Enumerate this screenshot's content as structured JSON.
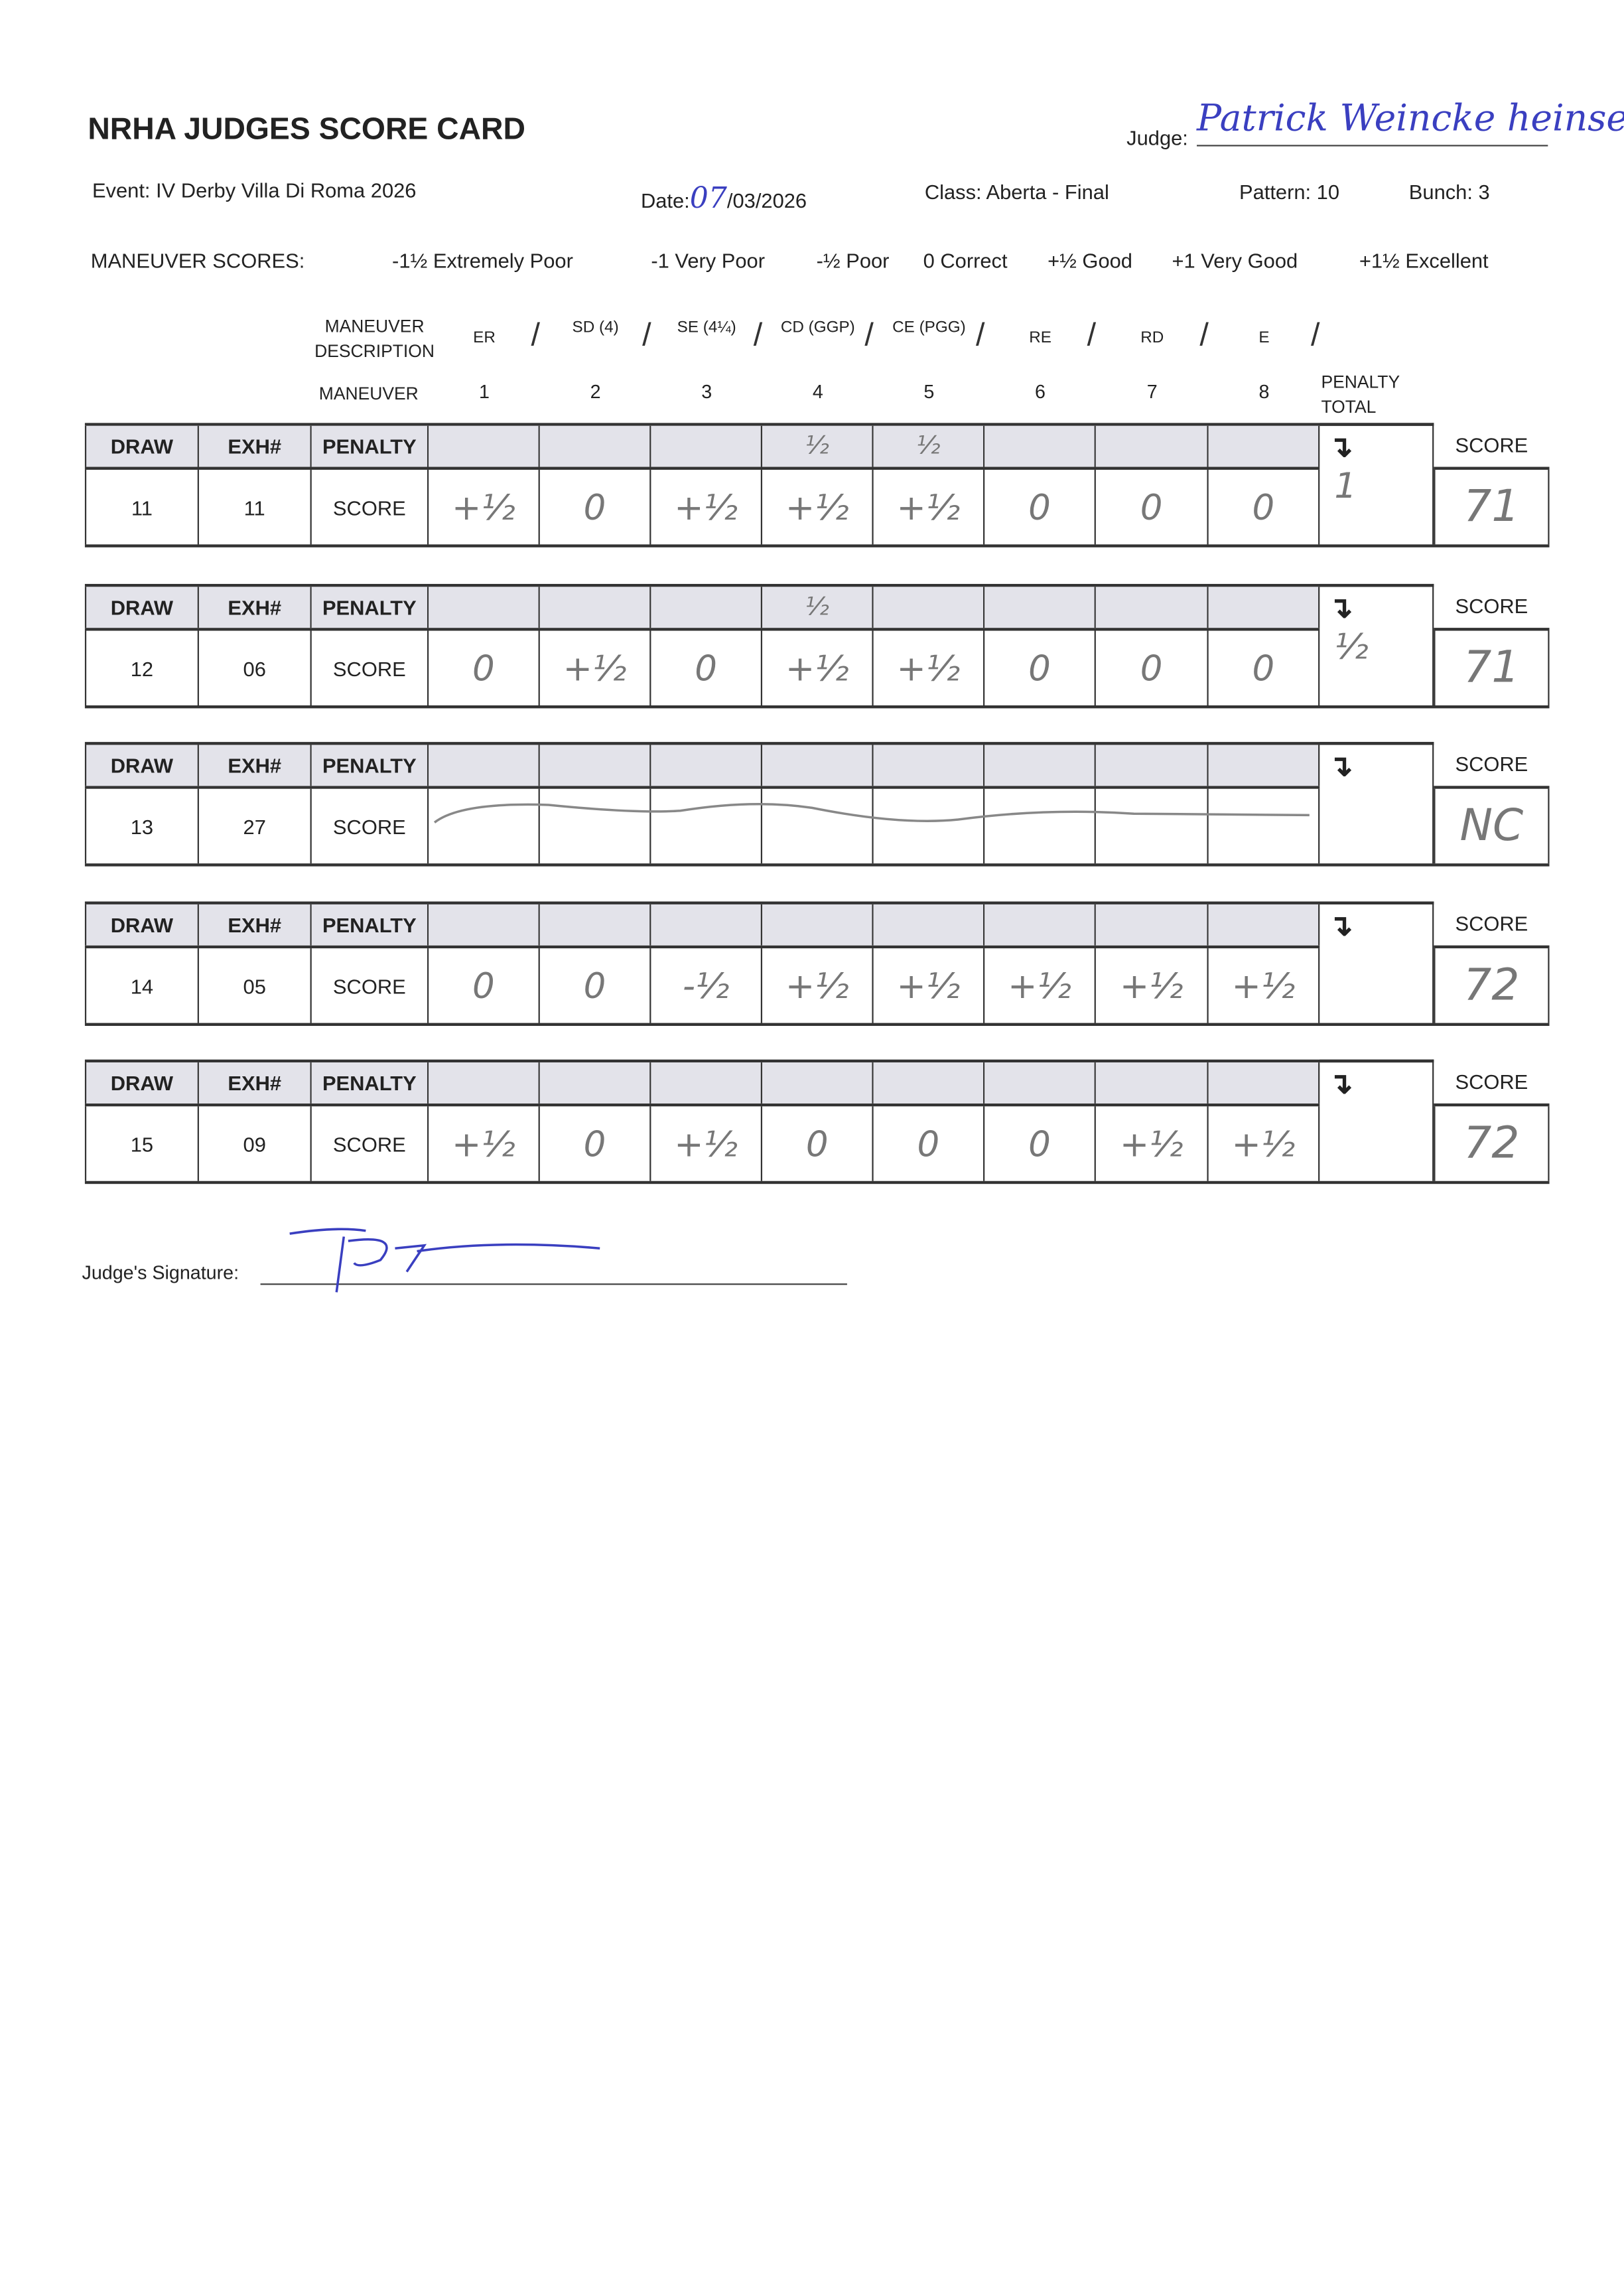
{
  "card": {
    "title": "NRHA JUDGES SCORE CARD",
    "judge_label": "Judge:",
    "judge_name": "Patrick Weincke heinser",
    "event": "Event: IV Derby Villa Di Roma 2026",
    "date_label": "Date:",
    "date_day": "07",
    "date_rest": "/03/2026",
    "class": "Class: Aberta - Final",
    "pattern": "Pattern: 10",
    "bunch": "Bunch: 3"
  },
  "scale": {
    "label": "MANEUVER SCORES:",
    "items": [
      "-1½ Extremely Poor",
      "-1 Very Poor",
      "-½ Poor",
      "0 Correct",
      "+½ Good",
      "+1 Very Good",
      "+1½ Excellent"
    ]
  },
  "maneuvers": {
    "desc_label": "MANEUVER DESCRIPTION",
    "num_label": "MANEUVER",
    "penalty_total_label": "PENALTY TOTAL",
    "items": [
      {
        "desc": "ER",
        "num": "1"
      },
      {
        "desc": "SD (4)",
        "num": "2"
      },
      {
        "desc": "SE (4¼)",
        "num": "3"
      },
      {
        "desc": "CD (GGP)",
        "num": "4"
      },
      {
        "desc": "CE (PGG)",
        "num": "5"
      },
      {
        "desc": "RE",
        "num": "6"
      },
      {
        "desc": "RD",
        "num": "7"
      },
      {
        "desc": "E",
        "num": "8"
      }
    ]
  },
  "table_labels": {
    "draw": "DRAW",
    "exh": "EXH#",
    "penalty": "PENALTY",
    "score_row": "SCORE",
    "score_col": "SCORE",
    "arrow": "↴"
  },
  "entries": [
    {
      "draw": "11",
      "exh": "11",
      "penalties": [
        "",
        "",
        "",
        "½",
        "½",
        "",
        "",
        ""
      ],
      "scores": [
        "+½",
        "0",
        "+½",
        "+½",
        "+½",
        "0",
        "0",
        "0"
      ],
      "penalty_total": "1",
      "score": "71"
    },
    {
      "draw": "12",
      "exh": "06",
      "penalties": [
        "",
        "",
        "",
        "½",
        "",
        "",
        "",
        ""
      ],
      "scores": [
        "0",
        "+½",
        "0",
        "+½",
        "+½",
        "0",
        "0",
        "0"
      ],
      "penalty_total": "½",
      "score": "71"
    },
    {
      "draw": "13",
      "exh": "27",
      "penalties": [
        "",
        "",
        "",
        "",
        "",
        "",
        "",
        ""
      ],
      "scores": [
        "",
        "",
        "",
        "",
        "",
        "",
        "",
        ""
      ],
      "struck_out": true,
      "penalty_total": "",
      "score": "NC"
    },
    {
      "draw": "14",
      "exh": "05",
      "penalties": [
        "",
        "",
        "",
        "",
        "",
        "",
        "",
        ""
      ],
      "scores": [
        "0",
        "0",
        "-½",
        "+½",
        "+½",
        "+½",
        "+½",
        "+½"
      ],
      "penalty_total": "",
      "score": "72"
    },
    {
      "draw": "15",
      "exh": "09",
      "penalties": [
        "",
        "",
        "",
        "",
        "",
        "",
        "",
        ""
      ],
      "scores": [
        "+½",
        "0",
        "+½",
        "0",
        "0",
        "0",
        "+½",
        "+½"
      ],
      "penalty_total": "",
      "score": "72"
    }
  ],
  "signature": {
    "label": "Judge's Signature:",
    "mark": "PW"
  },
  "colors": {
    "ink_blue": "#3a3fc0",
    "pencil": "#777777",
    "header_shade": "#e3e3ea"
  }
}
